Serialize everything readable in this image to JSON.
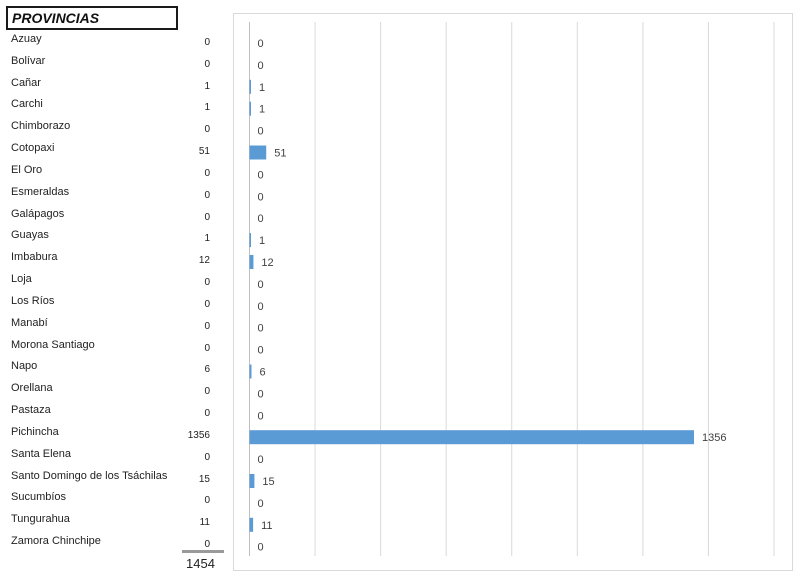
{
  "table": {
    "header": "PROVINCIAS",
    "total": "1454"
  },
  "chart_data": {
    "type": "bar",
    "orientation": "horizontal",
    "categories": [
      "Azuay",
      "Bolívar",
      "Cañar",
      "Carchi",
      "Chimborazo",
      "Cotopaxi",
      "El Oro",
      "Esmeraldas",
      "Galápagos",
      "Guayas",
      "Imbabura",
      "Loja",
      "Los Ríos",
      "Manabí",
      "Morona Santiago",
      "Napo",
      "Orellana",
      "Pastaza",
      "Pichincha",
      "Santa Elena",
      "Santo Domingo de los Tsáchilas",
      "Sucumbíos",
      "Tungurahua",
      "Zamora Chinchipe"
    ],
    "values": [
      0,
      0,
      1,
      1,
      0,
      51,
      0,
      0,
      0,
      1,
      12,
      0,
      0,
      0,
      0,
      6,
      0,
      0,
      1356,
      0,
      15,
      0,
      11,
      0
    ],
    "xlim": [
      0,
      1600
    ],
    "grid": true,
    "bar_color": "#5b9bd5"
  }
}
